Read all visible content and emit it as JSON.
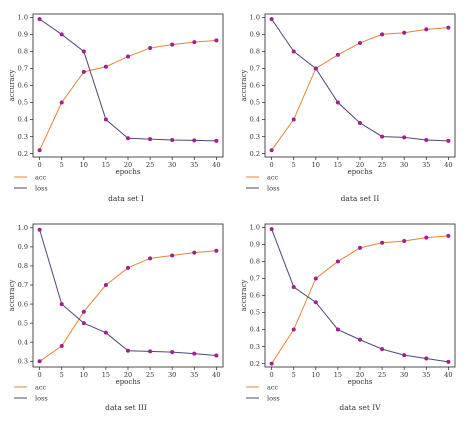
{
  "figure": {
    "series_colors": {
      "acc": "#E8833A",
      "loss": "#4A4A7A"
    },
    "marker_color": "#A0208C",
    "frame_color": "#222222"
  },
  "chart_data": [
    {
      "type": "line",
      "caption": "data set I",
      "xlabel": "epochs",
      "ylabel": "accuracy",
      "x": [
        0,
        5,
        10,
        15,
        20,
        25,
        30,
        35,
        40
      ],
      "xticks": [
        0,
        5,
        10,
        15,
        20,
        25,
        30,
        35,
        40
      ],
      "yticks": [
        0.2,
        0.3,
        0.4,
        0.5,
        0.6,
        0.7,
        0.8,
        0.9,
        1.0
      ],
      "xlim": [
        -1.5,
        41.5
      ],
      "ylim": [
        0.18,
        1.02
      ],
      "grid": false,
      "legend": "bottom-left",
      "series": [
        {
          "name": "acc",
          "values": [
            0.22,
            0.5,
            0.68,
            0.71,
            0.77,
            0.82,
            0.84,
            0.855,
            0.865
          ]
        },
        {
          "name": "loss",
          "values": [
            0.99,
            0.9,
            0.8,
            0.4,
            0.29,
            0.285,
            0.28,
            0.278,
            0.275
          ]
        }
      ]
    },
    {
      "type": "line",
      "caption": "data set II",
      "xlabel": "epochs",
      "ylabel": "accuracy",
      "x": [
        0,
        5,
        10,
        15,
        20,
        25,
        30,
        35,
        40
      ],
      "xticks": [
        0,
        5,
        10,
        15,
        20,
        25,
        30,
        35,
        40
      ],
      "yticks": [
        0.2,
        0.3,
        0.4,
        0.5,
        0.6,
        0.7,
        0.8,
        0.9,
        1.0
      ],
      "xlim": [
        -1.5,
        41.5
      ],
      "ylim": [
        0.18,
        1.02
      ],
      "grid": false,
      "legend": "bottom-left",
      "series": [
        {
          "name": "acc",
          "values": [
            0.22,
            0.4,
            0.7,
            0.78,
            0.85,
            0.9,
            0.91,
            0.93,
            0.94
          ]
        },
        {
          "name": "loss",
          "values": [
            0.99,
            0.8,
            0.7,
            0.5,
            0.38,
            0.3,
            0.295,
            0.28,
            0.275
          ]
        }
      ]
    },
    {
      "type": "line",
      "caption": "data set III",
      "xlabel": "epochs",
      "ylabel": "accuracy",
      "x": [
        0,
        5,
        10,
        15,
        20,
        25,
        30,
        35,
        40
      ],
      "xticks": [
        0,
        5,
        10,
        15,
        20,
        25,
        30,
        35,
        40
      ],
      "yticks": [
        0.3,
        0.4,
        0.5,
        0.6,
        0.7,
        0.8,
        0.9,
        1.0
      ],
      "xlim": [
        -1.5,
        41.5
      ],
      "ylim": [
        0.27,
        1.02
      ],
      "grid": false,
      "legend": "bottom-left",
      "series": [
        {
          "name": "acc",
          "values": [
            0.3,
            0.38,
            0.56,
            0.7,
            0.79,
            0.84,
            0.855,
            0.87,
            0.88
          ]
        },
        {
          "name": "loss",
          "values": [
            0.99,
            0.6,
            0.5,
            0.45,
            0.355,
            0.352,
            0.348,
            0.34,
            0.33
          ]
        }
      ]
    },
    {
      "type": "line",
      "caption": "data set IV",
      "xlabel": "epochs",
      "ylabel": "accuracy",
      "x": [
        0,
        5,
        10,
        15,
        20,
        25,
        30,
        35,
        40
      ],
      "xticks": [
        0,
        5,
        10,
        15,
        20,
        25,
        30,
        35,
        40
      ],
      "yticks": [
        0.2,
        0.3,
        0.4,
        0.5,
        0.6,
        0.7,
        0.8,
        0.9,
        1.0
      ],
      "xlim": [
        -1.5,
        41.5
      ],
      "ylim": [
        0.18,
        1.02
      ],
      "grid": false,
      "legend": "bottom-left",
      "series": [
        {
          "name": "acc",
          "values": [
            0.2,
            0.4,
            0.7,
            0.8,
            0.88,
            0.91,
            0.92,
            0.94,
            0.95
          ]
        },
        {
          "name": "loss",
          "values": [
            0.99,
            0.65,
            0.56,
            0.4,
            0.34,
            0.285,
            0.25,
            0.23,
            0.21
          ]
        }
      ]
    }
  ]
}
